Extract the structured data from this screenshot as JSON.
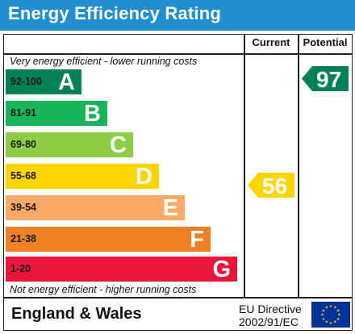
{
  "header": {
    "title": "Energy Efficiency Rating"
  },
  "columns": {
    "current": "Current",
    "potential": "Potential"
  },
  "notes": {
    "top": "Very energy efficient - lower running costs",
    "bottom": "Not energy efficient - higher running costs"
  },
  "bands": [
    {
      "range": "92-100",
      "letter": "A",
      "color": "#008054"
    },
    {
      "range": "81-91",
      "letter": "B",
      "color": "#19b459"
    },
    {
      "range": "69-80",
      "letter": "C",
      "color": "#8dce46"
    },
    {
      "range": "55-68",
      "letter": "D",
      "color": "#ffd500"
    },
    {
      "range": "39-54",
      "letter": "E",
      "color": "#fcaa65"
    },
    {
      "range": "21-38",
      "letter": "F",
      "color": "#ef8023"
    },
    {
      "range": "1-20",
      "letter": "G",
      "color": "#e9153b"
    }
  ],
  "ratings": {
    "current": {
      "value": "56",
      "band": "D",
      "color": "#ffd500"
    },
    "potential": {
      "value": "97",
      "band": "A",
      "color": "#008054"
    }
  },
  "footer": {
    "region": "England & Wales",
    "directive_line1": "EU Directive",
    "directive_line2": "2002/91/EC",
    "flag_icon": "eu-flag-icon",
    "flag_color": "#003399",
    "star_color": "#ffcc00"
  }
}
